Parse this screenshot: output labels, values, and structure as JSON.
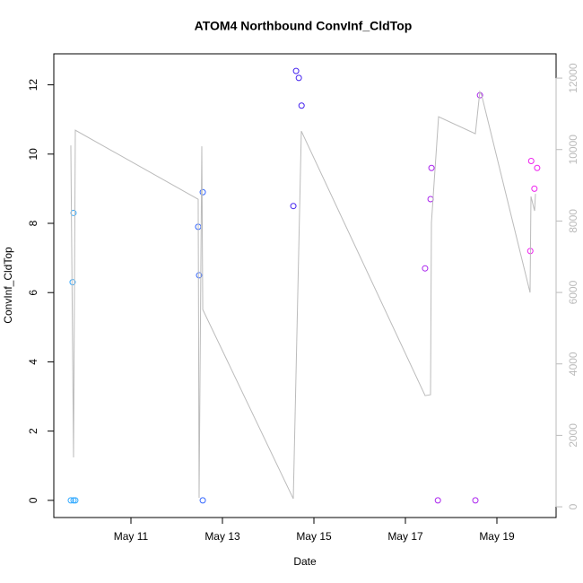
{
  "chart_data": {
    "type": "scatter",
    "title": "ATOM4 Northbound ConvInf_CldTop",
    "x_label": "Date",
    "y_label": "ConvInf_CldTop",
    "xlim": [
      9.314,
      20.294
    ],
    "xticks": [
      {
        "value": 11,
        "label": "May 11"
      },
      {
        "value": 13,
        "label": "May 13"
      },
      {
        "value": 15,
        "label": "May 15"
      },
      {
        "value": 17,
        "label": "May 17"
      },
      {
        "value": 19,
        "label": "May 19"
      }
    ],
    "ylim": [
      -0.496,
      12.896
    ],
    "yticks": [
      0,
      2,
      4,
      6,
      8,
      10,
      12
    ],
    "y2lim": [
      -300,
      12680
    ],
    "y2ticks": [
      0,
      2000,
      4000,
      6000,
      8000,
      10000,
      12000
    ],
    "y2_color": "#bbbbbb",
    "series": [
      {
        "color": "#33aaff",
        "x": [
          9.686,
          9.745,
          9.784,
          9.725,
          9.745
        ],
        "values": [
          0,
          0,
          0,
          6.3,
          8.3
        ]
      },
      {
        "color": "#3366ff",
        "x": [
          12.47,
          12.49,
          12.57,
          12.57
        ],
        "values": [
          7.9,
          6.5,
          8.9,
          0
        ]
      },
      {
        "color": "#4422ee",
        "x": [
          14.55,
          14.61,
          14.67,
          14.73
        ],
        "values": [
          8.5,
          12.4,
          12.2,
          11.4
        ]
      },
      {
        "color": "#aa22ee",
        "x": [
          17.43,
          17.55,
          17.57,
          17.71,
          18.53,
          18.63
        ],
        "values": [
          6.7,
          8.7,
          9.6,
          0,
          0,
          11.7
        ]
      },
      {
        "color": "#ee22ee",
        "x": [
          19.75,
          19.73,
          19.82,
          19.88
        ],
        "values": [
          9.8,
          7.2,
          9.0,
          9.6
        ]
      },
      {
        "type": "line",
        "axis": "y2",
        "color": "#bbbbbb",
        "x": [
          9.686,
          9.745,
          9.784,
          12.47,
          12.49,
          12.549,
          12.57,
          14.549,
          14.725,
          17.431,
          17.549,
          17.569,
          17.725,
          18.529,
          18.627,
          18.667,
          19.725,
          19.745,
          19.824,
          19.843
        ],
        "values": [
          10116,
          1381,
          10542,
          8609,
          251,
          10090,
          5522,
          226,
          10517,
          3112,
          3138,
          7957,
          10919,
          10442,
          11621,
          11521,
          5999,
          8685,
          8283,
          8760
        ]
      }
    ]
  }
}
